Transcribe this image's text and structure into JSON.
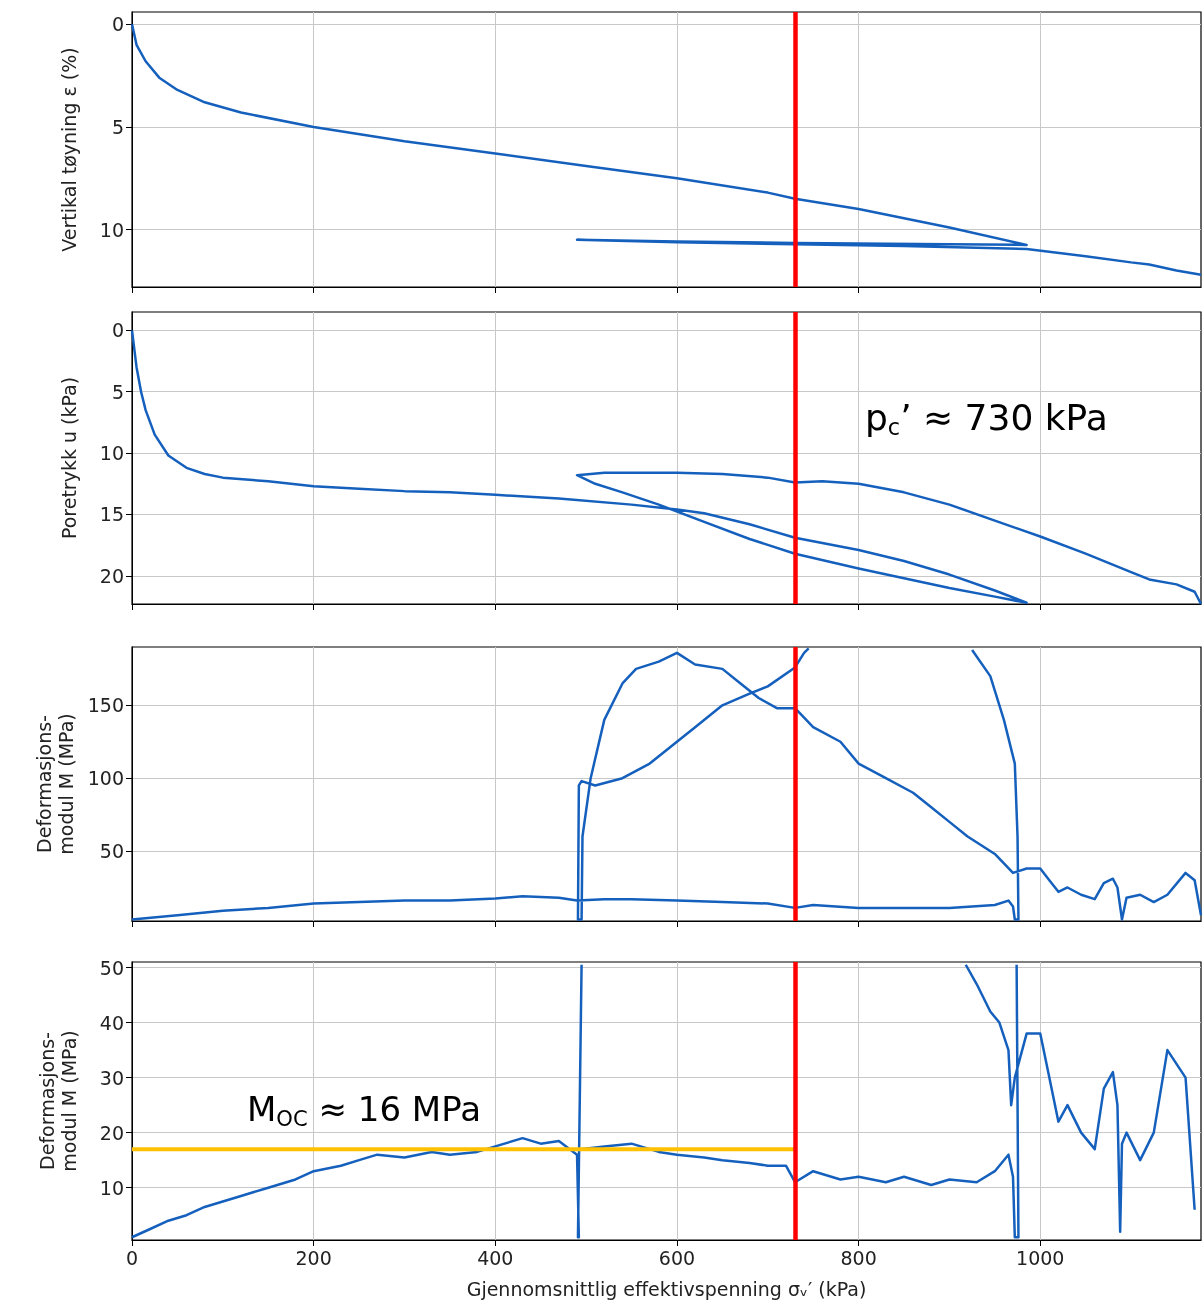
{
  "chart_data": [
    {
      "type": "line",
      "ylabel": "Vertikal tøyning ε (%)",
      "xlim": [
        0,
        1177
      ],
      "xticks": [
        0,
        200,
        400,
        600,
        800,
        1000
      ],
      "ylim": [
        12.8,
        -0.6
      ],
      "yticks": [
        0,
        5,
        10
      ],
      "grid": true,
      "tick_labels": "y",
      "series": [
        {
          "color": "#1560bd",
          "x": [
            0,
            5,
            15,
            30,
            50,
            80,
            120,
            200,
            300,
            400,
            500,
            600,
            700,
            730,
            800,
            900,
            985,
            900,
            730,
            600,
            490,
            600,
            730,
            850,
            985,
            1050,
            1100,
            1120,
            1150,
            1177
          ],
          "values": [
            0,
            1,
            1.8,
            2.6,
            3.2,
            3.8,
            4.3,
            5.0,
            5.7,
            6.3,
            6.9,
            7.5,
            8.2,
            8.5,
            9.0,
            9.9,
            10.75,
            10.72,
            10.65,
            10.58,
            10.5,
            10.62,
            10.72,
            10.8,
            10.95,
            11.3,
            11.6,
            11.7,
            12.0,
            12.2
          ]
        }
      ],
      "ref_lines": [
        {
          "axis": "x",
          "value": 730,
          "color": "#ff0000"
        }
      ]
    },
    {
      "type": "line",
      "ylabel": "Poretrykk u (kPa)",
      "xlim": [
        0,
        1177
      ],
      "xticks": [
        0,
        200,
        400,
        600,
        800,
        1000
      ],
      "ylim": [
        22.3,
        -1.5
      ],
      "yticks": [
        0,
        5,
        10,
        15,
        20
      ],
      "grid": true,
      "tick_labels": "y",
      "series": [
        {
          "color": "#1560bd",
          "x": [
            0,
            5,
            10,
            15,
            25,
            40,
            60,
            80,
            100,
            150,
            200,
            250,
            300,
            350,
            400,
            470,
            550,
            600,
            630,
            680,
            730,
            800,
            850,
            900,
            950,
            985,
            950,
            900,
            850,
            800,
            730,
            680,
            630,
            580,
            540,
            510,
            490,
            520,
            600,
            650,
            700,
            730,
            760,
            800,
            850,
            900,
            950,
            1000,
            1050,
            1100,
            1120,
            1150,
            1170,
            1177
          ],
          "values": [
            0,
            3,
            5,
            6.5,
            8.5,
            10.2,
            11.2,
            11.7,
            12.0,
            12.3,
            12.7,
            12.9,
            13.1,
            13.2,
            13.4,
            13.7,
            14.2,
            14.6,
            14.9,
            15.8,
            16.9,
            17.9,
            18.8,
            19.9,
            21.2,
            22.2,
            21.7,
            21.0,
            20.2,
            19.4,
            18.2,
            17.0,
            15.6,
            14.2,
            13.2,
            12.5,
            11.8,
            11.6,
            11.6,
            11.7,
            12.0,
            12.4,
            12.3,
            12.5,
            13.2,
            14.2,
            15.5,
            16.8,
            18.2,
            19.7,
            20.3,
            20.7,
            21.3,
            22.3
          ]
        }
      ],
      "ref_lines": [
        {
          "axis": "x",
          "value": 730,
          "label": "p$_{c}$’ ≈ 730 kPa",
          "color": "#ff0000"
        }
      ]
    },
    {
      "type": "line",
      "ylabel": "Deformasjons-\nmodul M (MPa)",
      "xlim": [
        0,
        1177
      ],
      "xticks": [
        0,
        200,
        400,
        600,
        800,
        1000
      ],
      "ylim": [
        2,
        190
      ],
      "yticks": [
        50,
        100,
        150
      ],
      "grid": true,
      "tick_labels": "y",
      "series": [
        {
          "color": "#1560bd",
          "x": [
            0,
            50,
            100,
            150,
            200,
            250,
            300,
            350,
            400,
            430,
            470,
            490,
            520,
            550,
            600,
            650,
            700,
            730,
            750,
            800,
            850,
            900,
            950,
            965,
            970,
            972,
            976,
            975,
            972,
            960,
            945,
            925,
            850,
            745,
            740,
            730,
            700,
            680,
            650,
            620,
            600,
            570,
            540,
            510,
            495,
            492,
            491,
            495,
            496,
            505,
            520,
            540,
            555,
            580,
            600,
            620,
            650,
            670,
            690,
            710,
            730,
            750,
            780,
            800,
            830,
            860,
            880,
            900,
            920,
            950,
            970,
            985,
            1000,
            1010,
            1020,
            1030,
            1045,
            1060,
            1070,
            1080,
            1085,
            1090,
            1095,
            1110,
            1125,
            1140,
            1160,
            1170,
            1177
          ],
          "values": [
            3,
            6,
            9,
            11,
            14,
            15,
            16,
            16,
            17.5,
            19,
            18,
            16,
            17,
            17,
            16,
            15,
            14,
            11,
            13,
            11,
            11,
            11,
            13,
            16,
            12,
            3,
            3,
            60,
            110,
            140,
            170,
            188,
            null,
            189,
            186,
            176,
            163,
            158,
            150,
            135,
            125,
            110,
            100,
            95,
            98,
            95,
            3,
            3,
            60,
            100,
            140,
            165,
            175,
            180,
            186,
            178,
            175,
            165,
            155,
            148,
            148,
            135,
            125,
            110,
            100,
            90,
            80,
            70,
            60,
            48,
            35,
            38,
            38,
            30,
            22,
            25,
            20,
            17,
            28,
            31,
            25,
            3,
            18,
            20,
            15,
            20,
            35,
            30,
            6
          ]
        }
      ],
      "ref_lines": [
        {
          "axis": "x",
          "value": 730,
          "color": "#ff0000"
        }
      ]
    },
    {
      "type": "line",
      "ylabel": "Deformasjons-\nmodul M (MPa)",
      "xlabel": "Gjennomsnittlig effektivspenning σᵥ′ (kPa)",
      "xlim": [
        0,
        1177
      ],
      "xticks": [
        0,
        200,
        400,
        600,
        800,
        1000
      ],
      "ylim": [
        0.5,
        51
      ],
      "yticks": [
        10,
        20,
        30,
        40,
        50
      ],
      "grid": true,
      "series": [
        {
          "color": "#1560bd",
          "x": [
            0,
            20,
            40,
            60,
            80,
            100,
            120,
            150,
            180,
            200,
            230,
            250,
            270,
            300,
            330,
            350,
            380,
            400,
            430,
            450,
            470,
            490,
            492,
            491,
            495,
            496,
            497,
            494,
            520,
            550,
            580,
            600,
            630,
            650,
            680,
            700,
            720,
            730,
            750,
            780,
            800,
            830,
            850,
            880,
            900,
            930,
            950,
            965,
            970,
            972,
            976,
            974,
            960,
            918,
            930,
            945,
            955,
            965,
            968,
            972,
            985,
            1000,
            1010,
            1020,
            1030,
            1045,
            1060,
            1070,
            1080,
            1085,
            1088,
            1090,
            1095,
            1110,
            1125,
            1140,
            1160,
            1170
          ],
          "values": [
            1,
            2.5,
            4,
            5,
            6.5,
            7.5,
            8.5,
            10,
            11.5,
            13,
            14,
            15,
            16,
            15.5,
            16.5,
            16,
            16.5,
            17.5,
            19,
            18,
            18.5,
            16,
            1,
            1,
            50.5,
            null,
            17,
            17,
            17.5,
            18,
            16.5,
            16,
            15.5,
            15,
            14.5,
            14,
            14,
            11,
            13,
            11.5,
            12,
            11,
            12,
            10.5,
            11.5,
            11,
            13,
            16,
            12,
            1,
            1,
            50.5,
            null,
            50.5,
            47,
            42,
            40,
            35,
            25,
            30,
            38,
            38,
            30,
            22,
            25,
            20,
            17,
            28,
            31,
            25,
            2,
            18,
            20,
            15,
            20,
            35,
            30,
            6
          ]
        },
        {
          "color": "#ffc000",
          "x": [
            0,
            730
          ],
          "values": [
            17,
            17
          ]
        }
      ],
      "ref_lines": [
        {
          "axis": "x",
          "value": 730,
          "color": "#ff0000"
        }
      ],
      "annotations": [
        "M$_{OC}$ ≈ 16 MPa"
      ]
    }
  ]
}
